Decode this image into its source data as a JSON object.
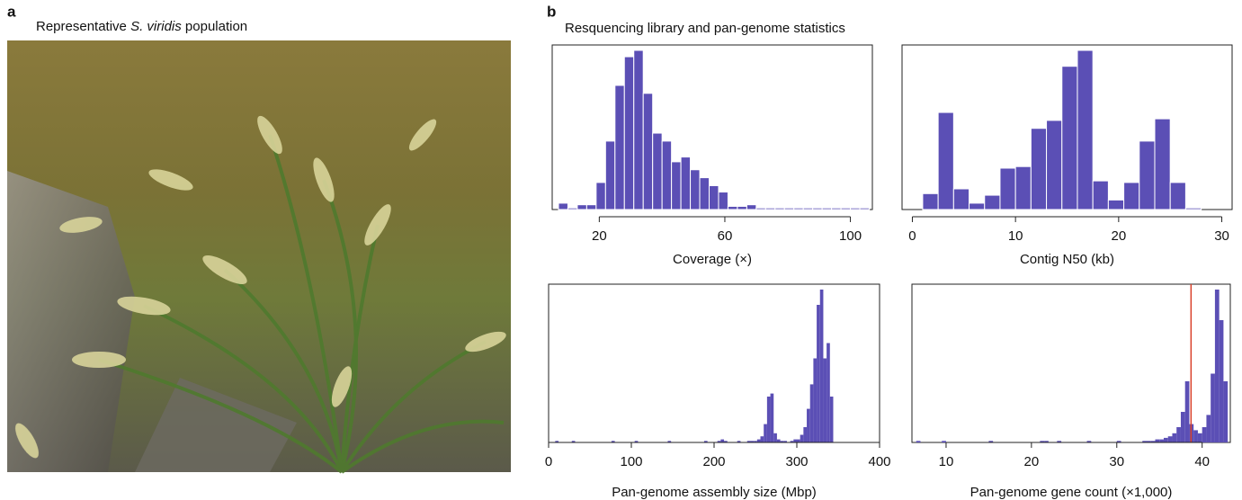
{
  "panel_a": {
    "label": "a",
    "title": [
      "Representative ",
      "S. viridis",
      " population"
    ]
  },
  "panel_b": {
    "label": "b",
    "title": "Resquencing library and pan-genome statistics"
  },
  "chart_data": [
    {
      "type": "histogram",
      "x_label": "Coverage (×)",
      "color": "#5b4fb5",
      "bins": [
        7,
        10,
        13,
        16,
        19,
        22,
        25,
        28,
        31,
        34,
        37,
        40,
        43,
        46,
        49,
        52,
        55,
        58,
        61,
        64,
        67,
        70,
        73,
        76,
        79,
        82,
        85,
        88,
        91,
        94,
        97,
        100,
        103,
        106
      ],
      "values": [
        4,
        1,
        3,
        3,
        17,
        43,
        78,
        96,
        100,
        73,
        48,
        43,
        30,
        33,
        25,
        20,
        15,
        11,
        2,
        2,
        3,
        1,
        1,
        1,
        1,
        1,
        1,
        1,
        1,
        1,
        1,
        1,
        1
      ],
      "xlim": [
        5,
        107
      ],
      "xticks": [
        20,
        60,
        100
      ],
      "ylim": [
        0,
        100
      ]
    },
    {
      "type": "histogram",
      "x_label": "Contig N50 (kb)",
      "color": "#5b4fb5",
      "bins": [
        1,
        2.5,
        4,
        5.5,
        7,
        8.5,
        10,
        11.5,
        13,
        14.5,
        16,
        17.5,
        19,
        20.5,
        22,
        23.5,
        25,
        26.5,
        28
      ],
      "values": [
        10,
        61,
        13,
        4,
        9,
        26,
        27,
        51,
        56,
        90,
        100,
        18,
        6,
        17,
        43,
        57,
        17,
        1
      ],
      "xlim": [
        -1,
        31
      ],
      "xticks": [
        0,
        10,
        20,
        30
      ],
      "ylim": [
        0,
        100
      ]
    },
    {
      "type": "histogram",
      "x_label": "Pan-genome assembly size (Mbp)",
      "color": "#5b4fb5",
      "bins": [
        8,
        12,
        16,
        20,
        24,
        28,
        32,
        36,
        40,
        44,
        48,
        52,
        56,
        60,
        64,
        68,
        72,
        76,
        80,
        84,
        88,
        92,
        96,
        100,
        104,
        108,
        112,
        116,
        120,
        124,
        128,
        132,
        136,
        140,
        144,
        148,
        152,
        156,
        160,
        164,
        168,
        172,
        176,
        180,
        184,
        188,
        192,
        196,
        200,
        204,
        208,
        212,
        216,
        220,
        224,
        228,
        232,
        236,
        240,
        244,
        248,
        252,
        256,
        260,
        264,
        268,
        272,
        276,
        280,
        284,
        288,
        292,
        296,
        300,
        304,
        308,
        312,
        316,
        320,
        324,
        328,
        332,
        336,
        340,
        344
      ],
      "values": [
        1,
        0,
        0,
        0,
        0,
        1,
        0,
        0,
        0,
        0,
        0,
        0,
        0,
        0,
        0,
        0,
        0,
        1,
        0,
        0,
        0,
        0,
        0,
        0,
        1,
        0,
        0,
        0,
        0,
        0,
        0,
        0,
        0,
        0,
        1,
        0,
        0,
        0,
        0,
        0,
        0,
        0,
        0,
        0,
        0,
        1,
        0,
        0,
        0,
        1,
        2,
        1,
        0,
        0,
        0,
        1,
        0,
        0,
        1,
        1,
        1,
        2,
        4,
        12,
        30,
        32,
        6,
        2,
        1,
        1,
        0,
        1,
        2,
        2,
        5,
        10,
        22,
        38,
        55,
        90,
        100,
        55,
        65,
        30
      ],
      "xlim": [
        0,
        400
      ],
      "xticks": [
        0,
        100,
        200,
        300,
        400
      ],
      "ylim": [
        0,
        100
      ]
    },
    {
      "type": "histogram",
      "x_label": "Pan-genome gene count (×1,000)",
      "color": "#5b4fb5",
      "bins": [
        6.5,
        7,
        7.5,
        8,
        8.5,
        9,
        9.5,
        10,
        10.5,
        11,
        11.5,
        12,
        12.5,
        13,
        13.5,
        14,
        14.5,
        15,
        15.5,
        16,
        16.5,
        17,
        17.5,
        18,
        18.5,
        19,
        19.5,
        20,
        20.5,
        21,
        21.5,
        22,
        22.5,
        23,
        23.5,
        24,
        24.5,
        25,
        25.5,
        26,
        26.5,
        27,
        27.5,
        28,
        28.5,
        29,
        29.5,
        30,
        30.5,
        31,
        31.5,
        32,
        32.5,
        33,
        33.5,
        34,
        34.5,
        35,
        35.5,
        36,
        36.5,
        37,
        37.5,
        38,
        38.5,
        39,
        39.5,
        40,
        40.5,
        41,
        41.5,
        42,
        42.5,
        43
      ],
      "values": [
        1,
        0,
        0,
        0,
        0,
        0,
        1,
        0,
        0,
        0,
        0,
        0,
        0,
        0,
        0,
        0,
        0,
        1,
        0,
        0,
        0,
        0,
        0,
        0,
        0,
        0,
        0,
        0,
        0,
        1,
        1,
        0,
        0,
        1,
        0,
        0,
        0,
        0,
        0,
        0,
        1,
        0,
        0,
        0,
        0,
        0,
        0,
        1,
        0,
        0,
        0,
        0,
        0,
        1,
        1,
        1,
        2,
        2,
        3,
        4,
        6,
        10,
        20,
        40,
        12,
        8,
        6,
        10,
        18,
        45,
        100,
        80,
        40
      ],
      "xlim": [
        6,
        43.3
      ],
      "xticks": [
        10,
        20,
        30,
        40
      ],
      "ylim": [
        0,
        100
      ],
      "reference_line": {
        "value": 38.7,
        "color": "#d9412b"
      }
    }
  ]
}
